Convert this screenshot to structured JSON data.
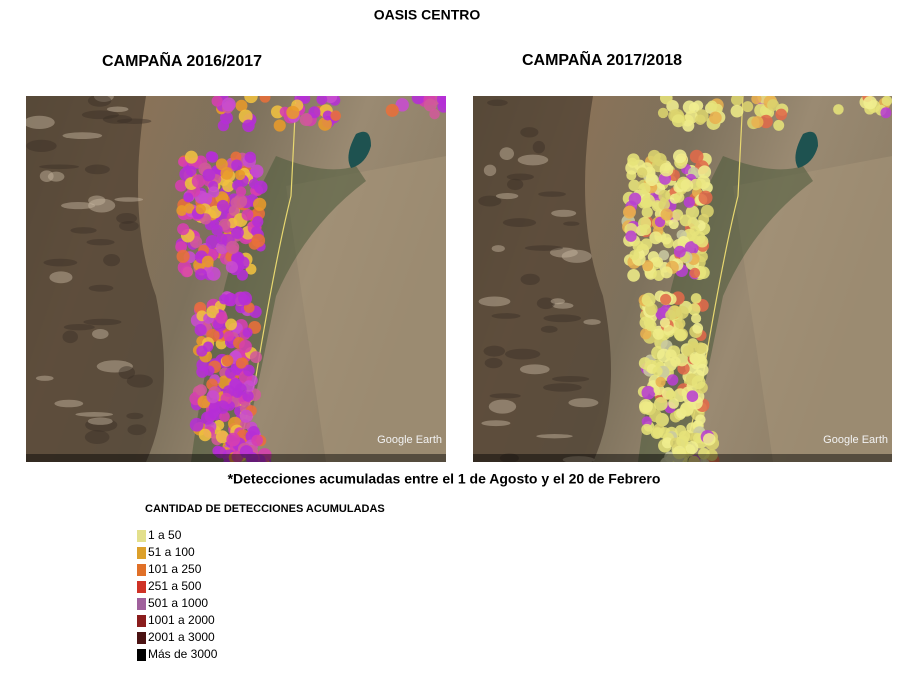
{
  "title": "OASIS CENTRO",
  "panels": [
    {
      "title": "CAMPAÑA 2016/2017",
      "watermark": "Google Earth"
    },
    {
      "title": "CAMPAÑA 2017/2018",
      "watermark": "Google Earth"
    }
  ],
  "footnote": "*Detecciones acumuladas entre el 1 de Agosto y el 20 de Febrero",
  "legend": {
    "title": "CANTIDAD DE DETECCIONES ACUMULADAS",
    "items": [
      {
        "label": "1 a 50",
        "color": "#e3e08c"
      },
      {
        "label": "51 a 100",
        "color": "#dca02a"
      },
      {
        "label": "101 a 250",
        "color": "#e07028"
      },
      {
        "label": "251 a 500",
        "color": "#cf3226"
      },
      {
        "label": "501 a 1000",
        "color": "#a0609c"
      },
      {
        "label": "1001 a 2000",
        "color": "#8a1c1c"
      },
      {
        "label": "2001 a 3000",
        "color": "#4a1212"
      },
      {
        "label": "Más de 3000",
        "color": "#000000"
      }
    ]
  }
}
